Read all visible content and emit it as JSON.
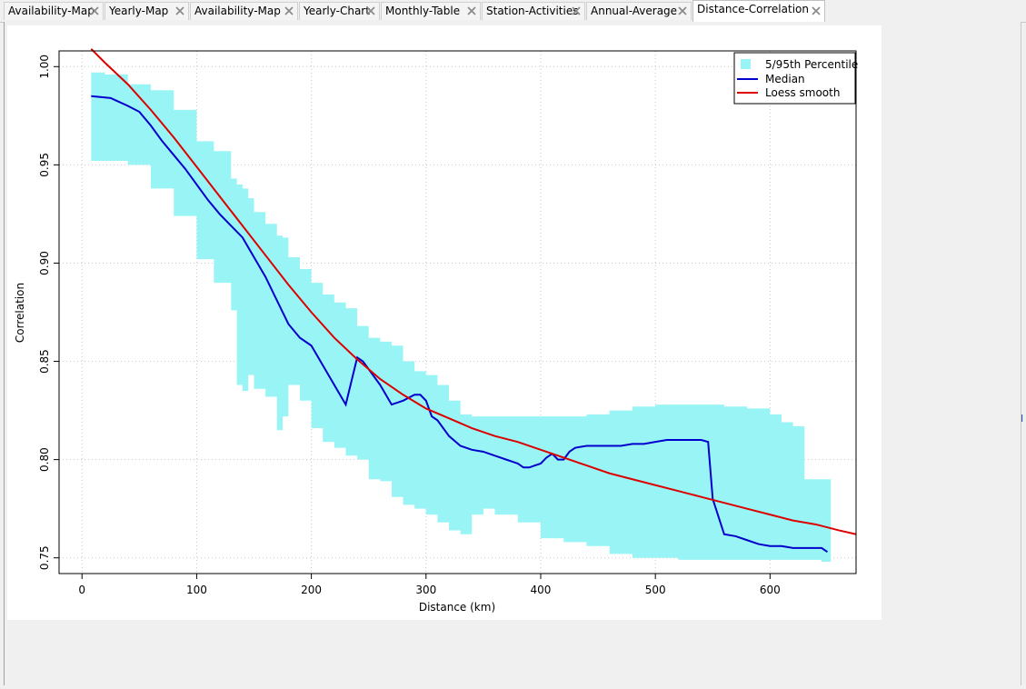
{
  "tabs": [
    {
      "label": "Availability-Map",
      "active": false
    },
    {
      "label": "Yearly-Map",
      "active": false
    },
    {
      "label": "Availability-Map",
      "active": false
    },
    {
      "label": "Yearly-Chart",
      "active": false
    },
    {
      "label": "Monthly-Table",
      "active": false
    },
    {
      "label": "Station-Activities",
      "active": false
    },
    {
      "label": "Annual-Average",
      "active": false
    },
    {
      "label": "Distance-Correlation",
      "active": true
    }
  ],
  "colors": {
    "band": "#99f5f5",
    "median": "#0000cc",
    "loess": "#dd0000",
    "grid": "#c8c8c8"
  },
  "chart_data": {
    "type": "line",
    "xlabel": "Distance (km)",
    "ylabel": "Correlation",
    "xlim": [
      -20,
      675
    ],
    "ylim": [
      0.742,
      1.008
    ],
    "xticks": [
      0,
      100,
      200,
      300,
      400,
      500,
      600
    ],
    "yticks": [
      0.75,
      0.8,
      0.85,
      0.9,
      0.95,
      1.0
    ],
    "ytick_labels": [
      "0.75",
      "0.80",
      "0.85",
      "0.90",
      "0.95",
      "1.00"
    ],
    "grid": true,
    "legend_position": "top-right",
    "legend": [
      "5/95th Percentile",
      "Median",
      "Loess smooth"
    ],
    "series": [
      {
        "name": "5/95th Percentile",
        "kind": "band",
        "x": [
          8,
          20,
          40,
          60,
          80,
          100,
          115,
          130,
          135,
          140,
          145,
          150,
          160,
          170,
          175,
          180,
          190,
          200,
          210,
          220,
          230,
          240,
          250,
          260,
          270,
          280,
          290,
          300,
          310,
          320,
          330,
          340,
          350,
          360,
          380,
          400,
          420,
          440,
          460,
          480,
          500,
          520,
          540,
          560,
          580,
          600,
          610,
          620,
          625,
          630,
          640,
          645,
          650
        ],
        "lower": [
          0.952,
          0.952,
          0.95,
          0.938,
          0.924,
          0.902,
          0.89,
          0.876,
          0.838,
          0.835,
          0.843,
          0.836,
          0.832,
          0.815,
          0.822,
          0.838,
          0.83,
          0.816,
          0.809,
          0.806,
          0.802,
          0.8,
          0.79,
          0.789,
          0.781,
          0.777,
          0.775,
          0.772,
          0.768,
          0.764,
          0.762,
          0.772,
          0.775,
          0.772,
          0.768,
          0.76,
          0.758,
          0.756,
          0.752,
          0.75,
          0.75,
          0.749,
          0.749,
          0.749,
          0.749,
          0.749,
          0.749,
          0.749,
          0.749,
          0.749,
          0.749,
          0.748,
          0.748
        ],
        "upper": [
          0.997,
          0.996,
          0.991,
          0.988,
          0.978,
          0.962,
          0.957,
          0.943,
          0.94,
          0.938,
          0.933,
          0.926,
          0.92,
          0.914,
          0.913,
          0.903,
          0.897,
          0.89,
          0.884,
          0.88,
          0.877,
          0.868,
          0.862,
          0.86,
          0.858,
          0.85,
          0.845,
          0.843,
          0.838,
          0.83,
          0.823,
          0.822,
          0.822,
          0.822,
          0.822,
          0.822,
          0.822,
          0.823,
          0.825,
          0.827,
          0.828,
          0.828,
          0.828,
          0.827,
          0.826,
          0.823,
          0.819,
          0.817,
          0.817,
          0.79,
          0.79,
          0.79,
          0.79
        ]
      },
      {
        "name": "Median",
        "kind": "line",
        "x": [
          8,
          25,
          40,
          50,
          60,
          70,
          80,
          90,
          100,
          110,
          120,
          130,
          140,
          150,
          160,
          170,
          180,
          190,
          200,
          210,
          220,
          230,
          240,
          245,
          250,
          260,
          270,
          280,
          290,
          295,
          300,
          305,
          310,
          320,
          330,
          340,
          350,
          360,
          370,
          380,
          385,
          390,
          395,
          400,
          405,
          410,
          415,
          420,
          425,
          430,
          440,
          450,
          460,
          470,
          480,
          490,
          500,
          510,
          520,
          530,
          540,
          546,
          550,
          560,
          570,
          580,
          590,
          600,
          610,
          620,
          630,
          640,
          645,
          650
        ],
        "y": [
          0.985,
          0.984,
          0.98,
          0.977,
          0.97,
          0.962,
          0.955,
          0.948,
          0.94,
          0.932,
          0.925,
          0.919,
          0.913,
          0.903,
          0.893,
          0.881,
          0.869,
          0.862,
          0.858,
          0.848,
          0.838,
          0.828,
          0.852,
          0.85,
          0.846,
          0.838,
          0.828,
          0.83,
          0.833,
          0.833,
          0.83,
          0.822,
          0.82,
          0.812,
          0.807,
          0.805,
          0.804,
          0.802,
          0.8,
          0.798,
          0.796,
          0.796,
          0.797,
          0.798,
          0.801,
          0.803,
          0.8,
          0.8,
          0.804,
          0.806,
          0.807,
          0.807,
          0.807,
          0.807,
          0.808,
          0.808,
          0.809,
          0.81,
          0.81,
          0.81,
          0.81,
          0.809,
          0.78,
          0.762,
          0.761,
          0.759,
          0.757,
          0.756,
          0.756,
          0.755,
          0.755,
          0.755,
          0.755,
          0.753
        ]
      },
      {
        "name": "Loess smooth",
        "kind": "line",
        "x": [
          8,
          20,
          40,
          60,
          80,
          100,
          120,
          140,
          160,
          180,
          200,
          220,
          240,
          260,
          280,
          300,
          320,
          340,
          360,
          380,
          400,
          420,
          440,
          460,
          480,
          500,
          520,
          540,
          560,
          580,
          600,
          620,
          640,
          660,
          675
        ],
        "y": [
          1.009,
          1.002,
          0.991,
          0.978,
          0.964,
          0.949,
          0.934,
          0.919,
          0.904,
          0.889,
          0.875,
          0.862,
          0.851,
          0.841,
          0.833,
          0.826,
          0.821,
          0.816,
          0.812,
          0.809,
          0.805,
          0.801,
          0.797,
          0.793,
          0.79,
          0.787,
          0.784,
          0.781,
          0.778,
          0.775,
          0.772,
          0.769,
          0.767,
          0.764,
          0.762
        ]
      }
    ]
  }
}
